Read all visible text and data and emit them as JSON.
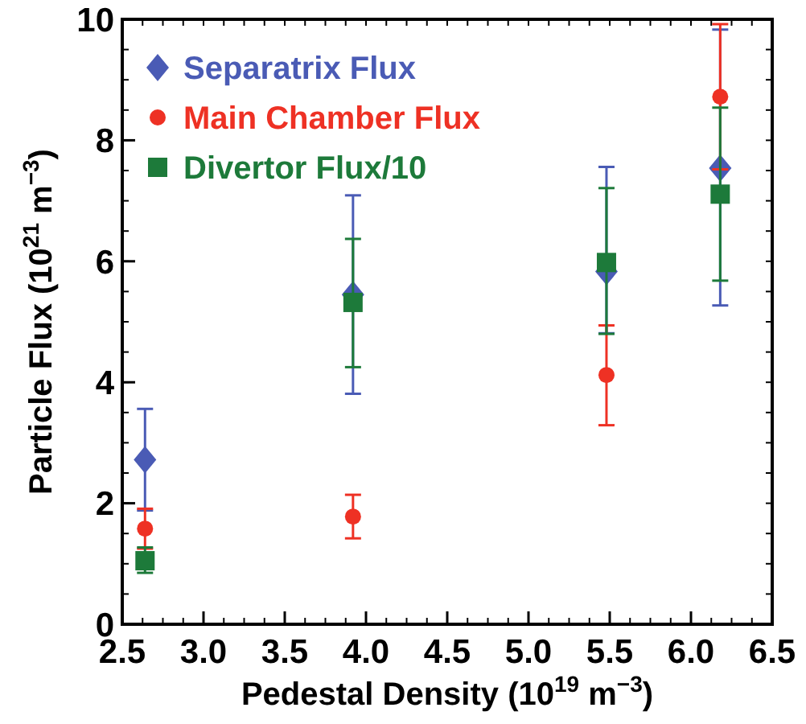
{
  "chart_data": {
    "type": "scatter",
    "xlabel": "Pedestal Density (10$^{19}$ m$^{−3}$)",
    "ylabel": "Particle Flux (10$^{21}$ m$^{−3}$)",
    "x": [
      2.64,
      3.92,
      5.48,
      6.18
    ],
    "xlim": [
      2.5,
      6.5
    ],
    "xticks": [
      {
        "value": 2.5,
        "label": "2.5"
      },
      {
        "value": 3,
        "label": "3.0"
      },
      {
        "value": 3.5,
        "label": "3.5"
      },
      {
        "value": 4,
        "label": "4.0"
      },
      {
        "value": 4.5,
        "label": "4.5"
      },
      {
        "value": 5,
        "label": "5.0"
      },
      {
        "value": 5.5,
        "label": "5.5"
      },
      {
        "value": 6,
        "label": "6.0"
      },
      {
        "value": 6.5,
        "label": "6.5"
      }
    ],
    "ylim": [
      0,
      10
    ],
    "yticks": [
      0,
      2,
      4,
      6,
      8,
      10
    ],
    "legend": "top left",
    "grid": false,
    "series": [
      {
        "name": "Separatrix Flux",
        "color": "#4a5bb5",
        "marker": "diamond",
        "values": [
          2.72,
          5.45,
          5.83,
          7.54
        ],
        "errors": [
          0.84,
          [
            3.81,
            7.09
          ],
          [
            4.81,
            7.56
          ],
          [
            5.27,
            9.83
          ]
        ]
      },
      {
        "name": "Main Chamber Flux",
        "color": "#ee3124",
        "marker": "circle",
        "values": [
          1.58,
          1.78,
          4.12,
          8.72
        ],
        "errors": [
          0.33,
          [
            1.42,
            2.14
          ],
          [
            3.29,
            4.94
          ],
          1.2
        ]
      },
      {
        "name": "Divertor Flux/10",
        "color": "#1d7a3a",
        "marker": "square",
        "values": [
          1.05,
          5.32,
          5.98,
          7.11
        ],
        "errors": [
          [
            0.85,
            1.27
          ],
          [
            4.25,
            6.37
          ],
          [
            4.8,
            7.21
          ],
          [
            5.68,
            8.54
          ]
        ]
      }
    ]
  }
}
